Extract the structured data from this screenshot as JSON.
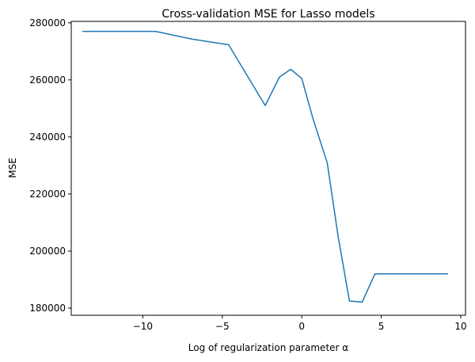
{
  "chart_data": {
    "type": "line",
    "title": "Cross-validation MSE for Lasso models",
    "xlabel": "Log of regularization parameter α",
    "ylabel": "MSE",
    "xlim": [
      -14.5,
      10.3
    ],
    "ylim": [
      177500,
      280500
    ],
    "xticks": [
      -10,
      -5,
      0,
      5,
      10
    ],
    "xtick_labels": [
      "−10",
      "−5",
      "0",
      "5",
      "10"
    ],
    "yticks": [
      180000,
      200000,
      220000,
      240000,
      260000,
      280000
    ],
    "ytick_labels": [
      "180000",
      "200000",
      "220000",
      "240000",
      "260000",
      "280000"
    ],
    "grid": false,
    "series": [
      {
        "color": "#1f77b4",
        "x": [
          -13.8,
          -11.5,
          -9.2,
          -6.9,
          -4.6,
          -2.3,
          -1.4,
          -0.7,
          0.0,
          0.7,
          1.6,
          2.3,
          3.0,
          3.8,
          4.6,
          6.9,
          9.2
        ],
        "y": [
          277000,
          277000,
          277000,
          274300,
          272300,
          251000,
          261000,
          263700,
          260500,
          246500,
          231000,
          204700,
          182500,
          182100,
          192000,
          192000,
          192000
        ]
      }
    ]
  }
}
